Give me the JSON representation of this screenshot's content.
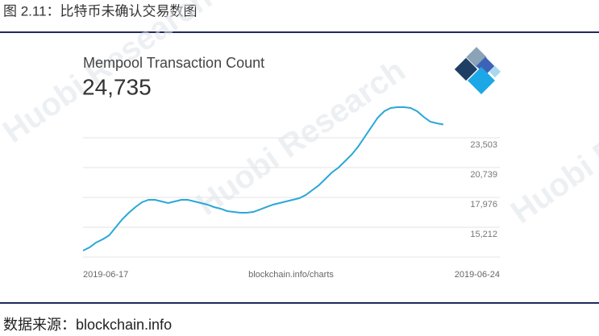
{
  "figure_title": "图 2.11：比特币未确认交易数图",
  "watermark": "Huobi Research",
  "chart_data": {
    "type": "line",
    "title": "Mempool Transaction Count",
    "current_value": "24,735",
    "source_label": "blockchain.info/charts",
    "x": [
      0,
      0.11,
      0.22,
      0.33,
      0.44,
      0.55,
      0.66,
      0.77,
      0.88,
      0.99,
      1.1,
      1.21,
      1.32,
      1.43,
      1.54,
      1.65,
      1.76,
      1.87,
      1.98,
      2.09,
      2.2,
      2.31,
      2.42,
      2.53,
      2.64,
      2.75,
      2.86,
      2.97,
      3.08,
      3.19,
      3.3,
      3.41,
      3.52,
      3.63,
      3.74,
      3.85,
      3.96,
      4.07,
      4.18,
      4.29,
      4.4,
      4.51,
      4.62,
      4.73,
      4.84,
      4.95,
      5.06,
      5.17,
      5.28,
      5.39,
      5.5,
      5.61,
      5.72,
      5.83,
      5.94,
      6.05
    ],
    "values": [
      13046,
      13344,
      13793,
      14091,
      14465,
      15212,
      15959,
      16557,
      17080,
      17528,
      17752,
      17752,
      17602,
      17453,
      17602,
      17752,
      17752,
      17602,
      17453,
      17304,
      17080,
      16930,
      16706,
      16631,
      16557,
      16557,
      16631,
      16855,
      17080,
      17304,
      17453,
      17602,
      17752,
      17901,
      18200,
      18648,
      19097,
      19694,
      20292,
      20740,
      21338,
      21935,
      22682,
      23578,
      24475,
      25371,
      25969,
      26268,
      26342,
      26342,
      26268,
      25969,
      25446,
      24998,
      24848,
      24735
    ],
    "color": "#2aa7d8",
    "xlim": [
      0,
      7
    ],
    "xticks": [
      {
        "value": 0,
        "label": "2019-06-17"
      },
      {
        "value": 7,
        "label": "2019-06-24"
      }
    ],
    "ylim": [
      12448,
      27313
    ],
    "yticks": [
      {
        "value": 15212,
        "label": "15,212"
      },
      {
        "value": 17976,
        "label": "17,976"
      },
      {
        "value": 20739,
        "label": "20,739"
      },
      {
        "value": 23503,
        "label": "23,503"
      }
    ],
    "grid": true
  },
  "source": "数据来源：blockchain.info"
}
